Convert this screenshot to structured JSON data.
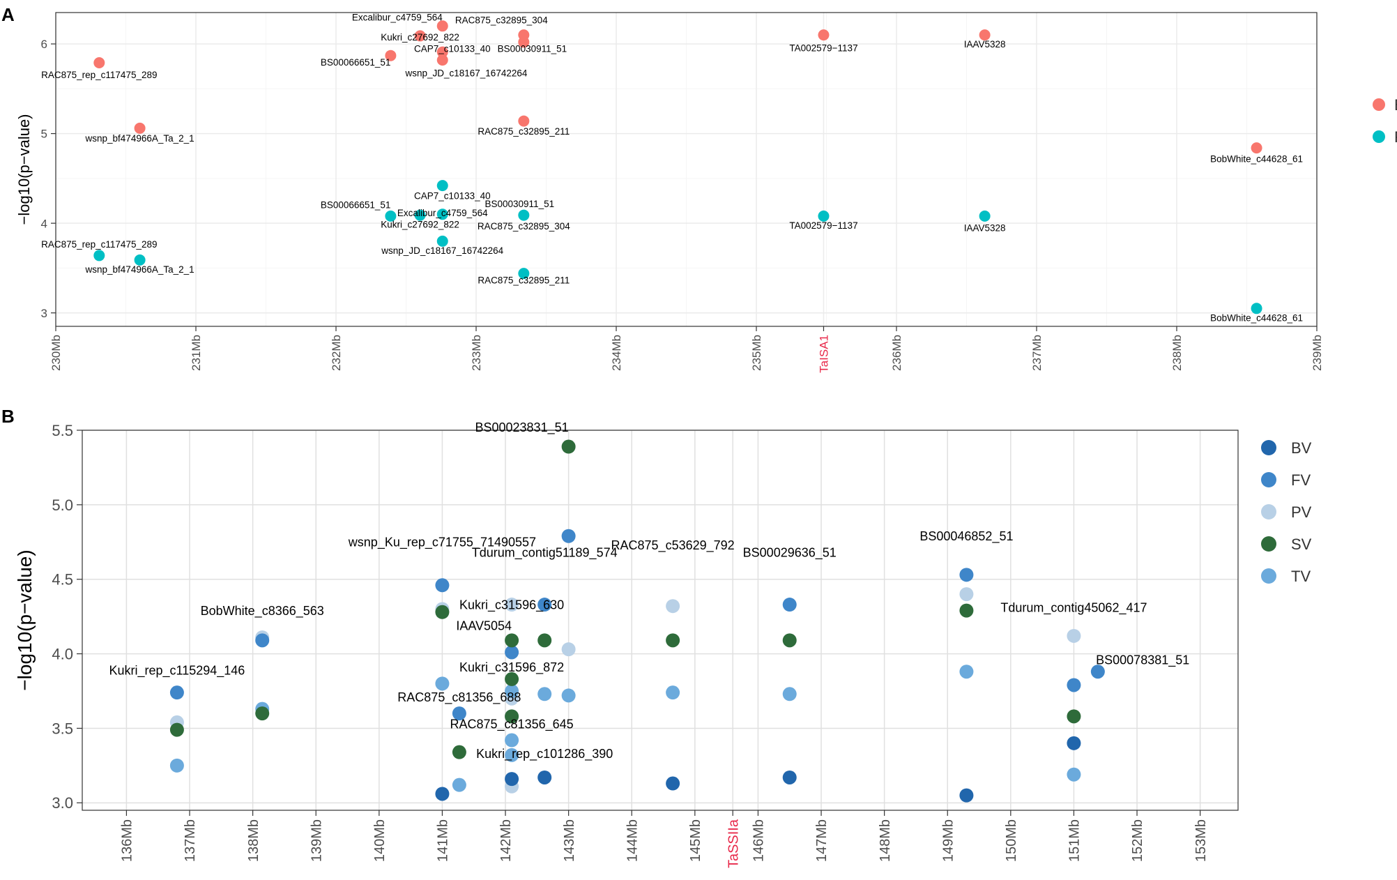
{
  "chart_data": [
    {
      "type": "scatter",
      "panel_label": "A",
      "xlabel": "",
      "ylabel": "−log10(p−value)",
      "xlim": [
        230,
        239
      ],
      "ylim": [
        2.85,
        6.35
      ],
      "x_ticks": [
        {
          "v": 230,
          "label": "230Mb"
        },
        {
          "v": 231,
          "label": "231Mb"
        },
        {
          "v": 232,
          "label": "232Mb"
        },
        {
          "v": 233,
          "label": "233Mb"
        },
        {
          "v": 234,
          "label": "234Mb"
        },
        {
          "v": 235,
          "label": "235Mb"
        },
        {
          "v": 236,
          "label": "236Mb"
        },
        {
          "v": 237,
          "label": "237Mb"
        },
        {
          "v": 238,
          "label": "238Mb"
        },
        {
          "v": 239,
          "label": "239Mb"
        }
      ],
      "gene_marker": {
        "v": 235.48,
        "label": "TaISA1",
        "color": "#e8294a"
      },
      "y_ticks": [
        3,
        4,
        5,
        6
      ],
      "grid": true,
      "legend": [
        {
          "name": "BV",
          "color": "#f8766d"
        },
        {
          "name": "FV",
          "color": "#00bfc4"
        }
      ],
      "series": [
        {
          "name": "BV",
          "color": "#f8766d",
          "points": [
            {
              "x": 230.31,
              "y": 5.79,
              "label": "RAC875_rep_c117475_289"
            },
            {
              "x": 230.6,
              "y": 5.06,
              "label": "wsnp_bf474966A_Ta_2_1"
            },
            {
              "x": 232.39,
              "y": 5.87,
              "label": "BS00066651_51"
            },
            {
              "x": 232.6,
              "y": 6.09,
              "label": "Kukri_c27692_822"
            },
            {
              "x": 232.76,
              "y": 6.2,
              "label": "Excalibur_c4759_564"
            },
            {
              "x": 232.76,
              "y": 5.91,
              "label": "CAP7_c10133_40"
            },
            {
              "x": 232.76,
              "y": 5.82,
              "label": "wsnp_JD_c18167_16742264"
            },
            {
              "x": 233.34,
              "y": 6.1,
              "label": "RAC875_c32895_304"
            },
            {
              "x": 233.34,
              "y": 6.02,
              "label": "BS00030911_51"
            },
            {
              "x": 233.34,
              "y": 5.14,
              "label": "RAC875_c32895_211"
            },
            {
              "x": 235.48,
              "y": 6.1,
              "label": "TA002579−1137"
            },
            {
              "x": 236.63,
              "y": 6.1,
              "label": "IAAV5328"
            },
            {
              "x": 238.57,
              "y": 4.84,
              "label": "BobWhite_c44628_61"
            }
          ]
        },
        {
          "name": "FV",
          "color": "#00bfc4",
          "points": [
            {
              "x": 230.31,
              "y": 3.64,
              "label": "RAC875_rep_c117475_289"
            },
            {
              "x": 230.6,
              "y": 3.59,
              "label": "wsnp_bf474966A_Ta_2_1"
            },
            {
              "x": 232.39,
              "y": 4.08,
              "label": "BS00066651_51"
            },
            {
              "x": 232.6,
              "y": 4.09,
              "label": "Kukri_c27692_822"
            },
            {
              "x": 232.76,
              "y": 4.42,
              "label": "CAP7_c10133_40"
            },
            {
              "x": 232.76,
              "y": 4.1,
              "label": "Excalibur_c4759_564"
            },
            {
              "x": 232.76,
              "y": 3.8,
              "label": "wsnp_JD_c18167_16742264"
            },
            {
              "x": 233.34,
              "y": 4.09,
              "label": "RAC875_c32895_304"
            },
            {
              "x": 233.34,
              "y": 3.44,
              "label": "RAC875_c32895_211"
            },
            {
              "x": 235.48,
              "y": 4.08,
              "label": "TA002579−1137"
            },
            {
              "x": 236.63,
              "y": 4.08,
              "label": "IAAV5328"
            },
            {
              "x": 238.57,
              "y": 3.05,
              "label": "BobWhite_c44628_61"
            }
          ]
        }
      ],
      "annotations": [
        {
          "text": "Excalibur_c4759_564",
          "x": 232.76,
          "y": 6.26,
          "anchor": "end"
        },
        {
          "text": "RAC875_c32895_304",
          "x": 232.85,
          "y": 6.23,
          "anchor": "start"
        },
        {
          "text": "Kukri_c27692_822",
          "x": 232.6,
          "y": 6.04,
          "anchor": "middle"
        },
        {
          "text": "CAP7_c10133_40",
          "x": 232.83,
          "y": 5.91,
          "anchor": "middle"
        },
        {
          "text": "BS00030911_51",
          "x": 233.4,
          "y": 5.91,
          "anchor": "middle"
        },
        {
          "text": "BS00066651_51",
          "x": 232.14,
          "y": 5.76,
          "anchor": "middle"
        },
        {
          "text": "wsnp_JD_c18167_16742264",
          "x": 232.93,
          "y": 5.64,
          "anchor": "middle"
        },
        {
          "text": "RAC875_rep_c117475_289",
          "x": 230.31,
          "y": 5.62,
          "anchor": "middle"
        },
        {
          "text": "TA002579−1137",
          "x": 235.48,
          "y": 5.92,
          "anchor": "middle"
        },
        {
          "text": "IAAV5328",
          "x": 236.63,
          "y": 5.96,
          "anchor": "middle"
        },
        {
          "text": "RAC875_c32895_211",
          "x": 233.34,
          "y": 4.99,
          "anchor": "middle"
        },
        {
          "text": "wsnp_bf474966A_Ta_2_1",
          "x": 230.6,
          "y": 4.91,
          "anchor": "middle"
        },
        {
          "text": "BobWhite_c44628_61",
          "x": 238.57,
          "y": 4.68,
          "anchor": "middle"
        },
        {
          "text": "CAP7_c10133_40",
          "x": 232.83,
          "y": 4.27,
          "anchor": "middle"
        },
        {
          "text": "BS00066651_51",
          "x": 232.14,
          "y": 4.17,
          "anchor": "middle"
        },
        {
          "text": "BS00030911_51",
          "x": 233.31,
          "y": 4.18,
          "anchor": "middle"
        },
        {
          "text": "Excalibur_c4759_564",
          "x": 232.76,
          "y": 4.08,
          "anchor": "middle"
        },
        {
          "text": "Kukri_c27692_822",
          "x": 232.6,
          "y": 3.95,
          "anchor": "middle"
        },
        {
          "text": "RAC875_c32895_304",
          "x": 233.34,
          "y": 3.93,
          "anchor": "middle"
        },
        {
          "text": "TA002579−1137",
          "x": 235.48,
          "y": 3.94,
          "anchor": "middle"
        },
        {
          "text": "IAAV5328",
          "x": 236.63,
          "y": 3.91,
          "anchor": "middle"
        },
        {
          "text": "RAC875_rep_c117475_289",
          "x": 230.31,
          "y": 3.73,
          "anchor": "middle"
        },
        {
          "text": "wsnp_JD_c18167_16742264",
          "x": 232.76,
          "y": 3.66,
          "anchor": "middle"
        },
        {
          "text": "wsnp_bf474966A_Ta_2_1",
          "x": 230.6,
          "y": 3.45,
          "anchor": "middle"
        },
        {
          "text": "RAC875_c32895_211",
          "x": 233.34,
          "y": 3.33,
          "anchor": "middle"
        },
        {
          "text": "BobWhite_c44628_61",
          "x": 238.57,
          "y": 2.91,
          "anchor": "middle"
        }
      ]
    },
    {
      "type": "scatter",
      "panel_label": "B",
      "xlabel": "",
      "ylabel": "−log10(p−value)",
      "xlim": [
        135.3,
        153.6
      ],
      "ylim": [
        2.95,
        5.5
      ],
      "x_ticks": [
        {
          "v": 136,
          "label": "136Mb"
        },
        {
          "v": 137,
          "label": "137Mb"
        },
        {
          "v": 138,
          "label": "138Mb"
        },
        {
          "v": 139,
          "label": "139Mb"
        },
        {
          "v": 140,
          "label": "140Mb"
        },
        {
          "v": 141,
          "label": "141Mb"
        },
        {
          "v": 142,
          "label": "142Mb"
        },
        {
          "v": 143,
          "label": "143Mb"
        },
        {
          "v": 144,
          "label": "144Mb"
        },
        {
          "v": 145,
          "label": "145Mb"
        },
        {
          "v": 146,
          "label": "146Mb"
        },
        {
          "v": 147,
          "label": "147Mb"
        },
        {
          "v": 148,
          "label": "148Mb"
        },
        {
          "v": 149,
          "label": "149Mb"
        },
        {
          "v": 150,
          "label": "150Mb"
        },
        {
          "v": 151,
          "label": "151Mb"
        },
        {
          "v": 152,
          "label": "152Mb"
        },
        {
          "v": 153,
          "label": "153Mb"
        }
      ],
      "gene_marker": {
        "v": 145.6,
        "label": "TaSSIIa",
        "color": "#e8294a"
      },
      "y_ticks": [
        {
          "v": 3.0,
          "label": "3.0"
        },
        {
          "v": 3.5,
          "label": "3.5"
        },
        {
          "v": 4.0,
          "label": "4.0"
        },
        {
          "v": 4.5,
          "label": "4.5"
        },
        {
          "v": 5.0,
          "label": "5.0"
        },
        {
          "v": 5.5,
          "label": "5.5"
        }
      ],
      "grid": true,
      "legend": [
        {
          "name": "BV",
          "color": "#2166ac"
        },
        {
          "name": "FV",
          "color": "#3f86c9"
        },
        {
          "name": "PV",
          "color": "#b8d0e6"
        },
        {
          "name": "SV",
          "color": "#2e6b3a"
        },
        {
          "name": "TV",
          "color": "#6baadc"
        }
      ],
      "series": [
        {
          "name": "PV",
          "color": "#b8d0e6",
          "points": [
            {
              "x": 136.8,
              "y": 3.54
            },
            {
              "x": 138.15,
              "y": 4.11
            },
            {
              "x": 141.0,
              "y": 4.3
            },
            {
              "x": 142.1,
              "y": 3.11
            },
            {
              "x": 142.1,
              "y": 4.33
            },
            {
              "x": 142.1,
              "y": 3.7
            },
            {
              "x": 142.1,
              "y": 3.58
            },
            {
              "x": 143.0,
              "y": 4.03
            },
            {
              "x": 144.65,
              "y": 4.32
            },
            {
              "x": 149.3,
              "y": 4.4
            },
            {
              "x": 151.0,
              "y": 4.12
            }
          ]
        },
        {
          "name": "TV",
          "color": "#6baadc",
          "points": [
            {
              "x": 136.8,
              "y": 3.25
            },
            {
              "x": 138.15,
              "y": 3.63
            },
            {
              "x": 141.0,
              "y": 3.8
            },
            {
              "x": 141.27,
              "y": 3.12
            },
            {
              "x": 142.1,
              "y": 3.42
            },
            {
              "x": 142.1,
              "y": 3.32
            },
            {
              "x": 142.1,
              "y": 3.75
            },
            {
              "x": 142.62,
              "y": 3.73
            },
            {
              "x": 143.0,
              "y": 3.72
            },
            {
              "x": 144.65,
              "y": 3.74
            },
            {
              "x": 146.5,
              "y": 3.73
            },
            {
              "x": 149.3,
              "y": 3.88
            },
            {
              "x": 151.0,
              "y": 3.19
            }
          ]
        },
        {
          "name": "FV",
          "color": "#3f86c9",
          "points": [
            {
              "x": 136.8,
              "y": 3.74
            },
            {
              "x": 138.15,
              "y": 4.09
            },
            {
              "x": 141.0,
              "y": 4.46
            },
            {
              "x": 141.27,
              "y": 3.6
            },
            {
              "x": 142.1,
              "y": 4.01
            },
            {
              "x": 142.62,
              "y": 4.33
            },
            {
              "x": 143.0,
              "y": 4.79
            },
            {
              "x": 146.5,
              "y": 4.33
            },
            {
              "x": 149.3,
              "y": 4.53
            },
            {
              "x": 151.0,
              "y": 3.79
            },
            {
              "x": 151.38,
              "y": 3.88
            }
          ]
        },
        {
          "name": "SV",
          "color": "#2e6b3a",
          "points": [
            {
              "x": 136.8,
              "y": 3.49
            },
            {
              "x": 138.15,
              "y": 3.6
            },
            {
              "x": 141.0,
              "y": 4.28
            },
            {
              "x": 141.27,
              "y": 3.34
            },
            {
              "x": 142.1,
              "y": 4.09
            },
            {
              "x": 142.1,
              "y": 3.83
            },
            {
              "x": 142.1,
              "y": 3.58
            },
            {
              "x": 142.62,
              "y": 4.09
            },
            {
              "x": 143.0,
              "y": 5.39
            },
            {
              "x": 144.65,
              "y": 4.09
            },
            {
              "x": 146.5,
              "y": 4.09
            },
            {
              "x": 149.3,
              "y": 4.29
            },
            {
              "x": 151.0,
              "y": 3.58
            }
          ]
        },
        {
          "name": "BV",
          "color": "#2166ac",
          "points": [
            {
              "x": 141.0,
              "y": 3.06
            },
            {
              "x": 142.1,
              "y": 3.16
            },
            {
              "x": 142.62,
              "y": 3.17
            },
            {
              "x": 144.65,
              "y": 3.13
            },
            {
              "x": 146.5,
              "y": 3.17
            },
            {
              "x": 149.3,
              "y": 3.05
            },
            {
              "x": 151.0,
              "y": 3.4
            }
          ]
        }
      ],
      "annotations": [
        {
          "text": "BS00023831_51",
          "x": 143.0,
          "y": 5.49,
          "anchor": "end"
        },
        {
          "text": "wsnp_Ku_rep_c71755_71490557",
          "x": 141.0,
          "y": 4.72,
          "anchor": "middle"
        },
        {
          "text": "RAC875_c53629_792",
          "x": 144.65,
          "y": 4.7,
          "anchor": "middle"
        },
        {
          "text": "Tdurum_contig51189_574",
          "x": 142.62,
          "y": 4.65,
          "anchor": "middle"
        },
        {
          "text": "BS00029636_51",
          "x": 146.5,
          "y": 4.65,
          "anchor": "middle"
        },
        {
          "text": "BS00046852_51",
          "x": 149.3,
          "y": 4.76,
          "anchor": "middle"
        },
        {
          "text": "BobWhite_c8366_563",
          "x": 138.15,
          "y": 4.26,
          "anchor": "middle"
        },
        {
          "text": "Kukri_c31596_630",
          "x": 142.1,
          "y": 4.3,
          "anchor": "middle"
        },
        {
          "text": "IAAV5054",
          "x": 142.1,
          "y": 4.16,
          "anchor": "end"
        },
        {
          "text": "Tdurum_contig45062_417",
          "x": 151.0,
          "y": 4.28,
          "anchor": "middle"
        },
        {
          "text": "BS00078381_51",
          "x": 151.35,
          "y": 3.93,
          "anchor": "start"
        },
        {
          "text": "Kukri_c31596_872",
          "x": 142.1,
          "y": 3.88,
          "anchor": "middle"
        },
        {
          "text": "Kukri_rep_c115294_146",
          "x": 136.8,
          "y": 3.86,
          "anchor": "middle"
        },
        {
          "text": "RAC875_c81356_688",
          "x": 141.27,
          "y": 3.68,
          "anchor": "middle"
        },
        {
          "text": "RAC875_c81356_645",
          "x": 142.1,
          "y": 3.5,
          "anchor": "middle"
        },
        {
          "text": "Kukri_rep_c101286_390",
          "x": 142.62,
          "y": 3.3,
          "anchor": "middle"
        }
      ]
    }
  ]
}
